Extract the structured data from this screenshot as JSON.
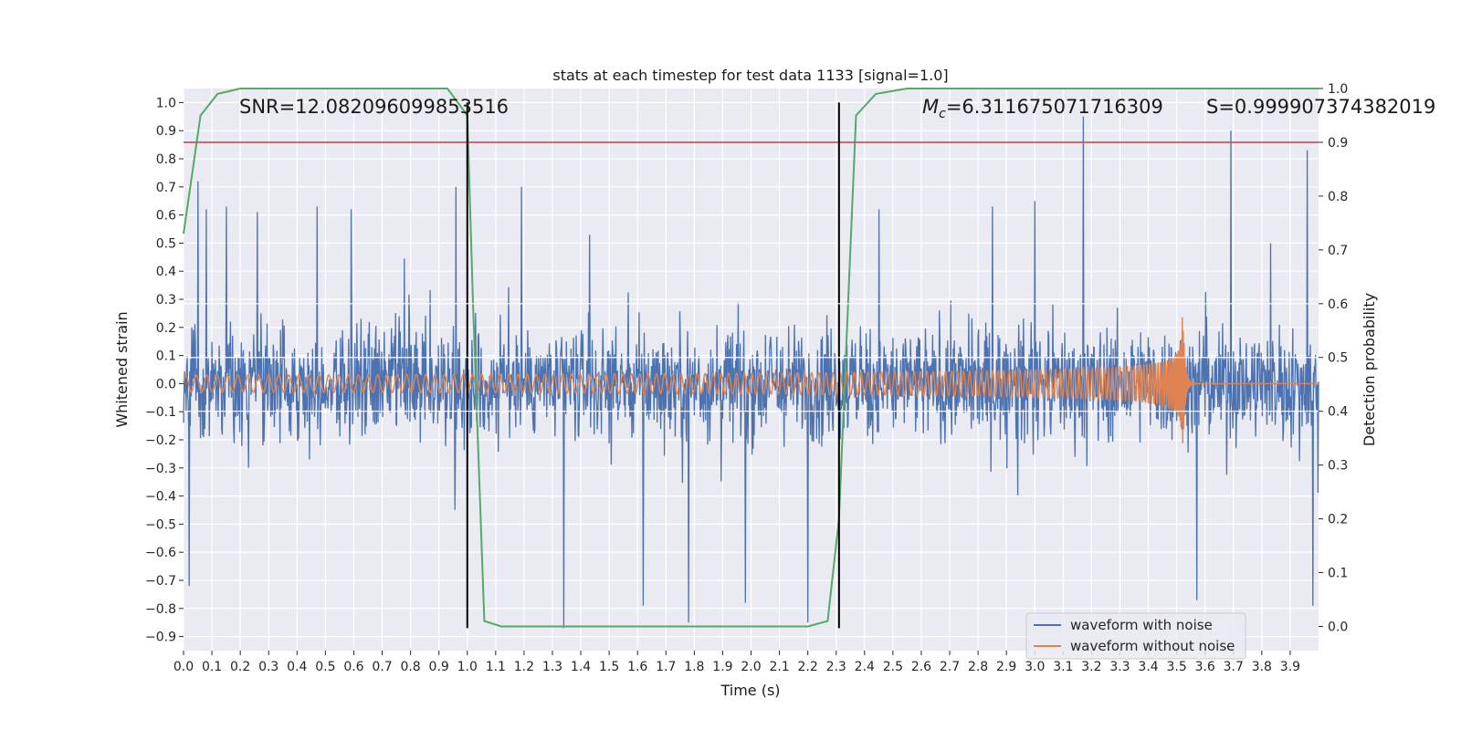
{
  "chart_data": {
    "type": "line",
    "title": "stats at each timestep for test data 1133 [signal=1.0]",
    "xlabel": "Time (s)",
    "ylabel": "Whitened strain",
    "y2label": "Detection probability",
    "xlim": [
      0.0,
      4.0
    ],
    "ylim": [
      -0.95,
      1.05
    ],
    "y2lim": [
      -0.045,
      1.0
    ],
    "x_ticks": [
      "0.0",
      "0.1",
      "0.2",
      "0.3",
      "0.4",
      "0.5",
      "0.6",
      "0.7",
      "0.8",
      "0.9",
      "1.0",
      "1.1",
      "1.2",
      "1.3",
      "1.4",
      "1.5",
      "1.6",
      "1.7",
      "1.8",
      "1.9",
      "2.0",
      "2.1",
      "2.2",
      "2.3",
      "2.4",
      "2.5",
      "2.6",
      "2.7",
      "2.8",
      "2.9",
      "3.0",
      "3.1",
      "3.2",
      "3.3",
      "3.4",
      "3.5",
      "3.6",
      "3.7",
      "3.8",
      "3.9"
    ],
    "y_ticks": [
      "−0.9",
      "−0.8",
      "−0.7",
      "−0.6",
      "−0.5",
      "−0.4",
      "−0.3",
      "−0.2",
      "−0.1",
      "0.0",
      "0.1",
      "0.2",
      "0.3",
      "0.4",
      "0.5",
      "0.6",
      "0.7",
      "0.8",
      "0.9",
      "1.0"
    ],
    "y2_ticks": [
      "0.0",
      "0.1",
      "0.2",
      "0.3",
      "0.4",
      "0.5",
      "0.6",
      "0.7",
      "0.8",
      "0.9",
      "1.0"
    ],
    "annotations": {
      "snr": "SNR=12.082096099853516",
      "mc_symbol": "M",
      "mc_sub": "c",
      "mc_value": "=6.311675071716309",
      "s": "S=0.999907374382019"
    },
    "threshold_line": {
      "axis": "y2",
      "value": 0.9,
      "color": "#c44e52"
    },
    "vertical_lines": [
      {
        "x": 1.0,
        "color": "#000000",
        "y_from": -0.87,
        "y_to": 1.0
      },
      {
        "x": 2.31,
        "color": "#000000",
        "y_from": -0.87,
        "y_to": 1.0
      }
    ],
    "series": [
      {
        "name": "waveform with noise",
        "color": "#4c72b0",
        "description": "whitened noisy strain, amplitude approx ±0.3 typical, spikes to 0.95 / −0.87",
        "envelope": 0.3,
        "spikes": [
          [
            0.02,
            -0.72
          ],
          [
            0.05,
            0.72
          ],
          [
            0.08,
            0.62
          ],
          [
            0.15,
            0.63
          ],
          [
            0.26,
            0.61
          ],
          [
            0.47,
            0.63
          ],
          [
            0.59,
            0.62
          ],
          [
            0.96,
            0.7
          ],
          [
            1.19,
            0.7
          ],
          [
            1.34,
            -0.87
          ],
          [
            1.43,
            0.53
          ],
          [
            1.62,
            -0.79
          ],
          [
            1.78,
            -0.85
          ],
          [
            1.98,
            -0.78
          ],
          [
            2.2,
            -0.85
          ],
          [
            2.45,
            0.62
          ],
          [
            2.85,
            0.63
          ],
          [
            3.0,
            0.65
          ],
          [
            3.17,
            0.95
          ],
          [
            3.57,
            -0.77
          ],
          [
            3.69,
            0.9
          ],
          [
            3.96,
            0.83
          ],
          [
            3.98,
            -0.79
          ]
        ]
      },
      {
        "name": "waveform without noise",
        "color": "#dd8452",
        "description": "chirp signal with merger near t=3.52 s",
        "chirp": {
          "amp0": 0.03,
          "merger_t": 3.52,
          "peak_amp": 0.3,
          "f0": 27
        }
      },
      {
        "name": "detection probability",
        "axis": "y2",
        "color": "#55a868",
        "x": [
          0.0,
          0.06,
          0.12,
          0.2,
          0.3,
          0.5,
          0.7,
          0.8,
          0.93,
          1.0,
          1.02,
          1.06,
          1.12,
          1.2,
          1.5,
          1.8,
          2.1,
          2.2,
          2.27,
          2.31,
          2.37,
          2.44,
          2.55,
          3.0,
          3.5,
          4.0
        ],
        "y": [
          0.73,
          0.95,
          0.99,
          1.0,
          1.0,
          1.0,
          1.0,
          1.0,
          1.0,
          0.95,
          0.6,
          0.01,
          0.0,
          0.0,
          0.0,
          0.0,
          0.0,
          0.0,
          0.01,
          0.2,
          0.95,
          0.99,
          1.0,
          1.0,
          1.0,
          1.0
        ]
      }
    ],
    "legend": {
      "placement": "bottom-right",
      "entries": [
        "waveform with noise",
        "waveform without noise"
      ]
    },
    "grid": true
  }
}
